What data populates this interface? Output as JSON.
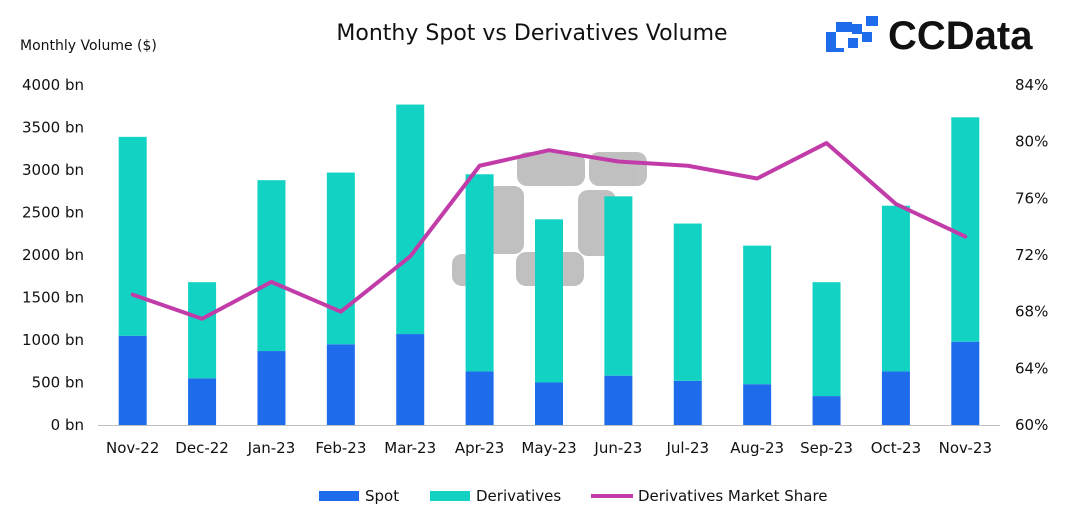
{
  "chart_data": {
    "type": "bar",
    "stacked": true,
    "title": "Monthy Spot vs Derivatives Volume",
    "ylabel": "Monthly Volume ($)",
    "brand": "CCData",
    "categories": [
      "Nov-22",
      "Dec-22",
      "Jan-23",
      "Feb-23",
      "Mar-23",
      "Apr-23",
      "May-23",
      "Jun-23",
      "Jul-23",
      "Aug-23",
      "Sep-23",
      "Oct-23",
      "Nov-23"
    ],
    "series": [
      {
        "name": "Spot",
        "kind": "bar",
        "axis": "left",
        "color": "#1e6beb",
        "values": [
          1050,
          550,
          870,
          950,
          1070,
          630,
          500,
          580,
          520,
          480,
          340,
          630,
          980
        ]
      },
      {
        "name": "Derivatives",
        "kind": "bar",
        "axis": "left",
        "color": "#12d3c3",
        "values": [
          2340,
          1130,
          2010,
          2020,
          2700,
          2320,
          1920,
          2110,
          1850,
          1630,
          1340,
          1950,
          2640
        ]
      },
      {
        "name": "Derivatives Market Share",
        "kind": "line",
        "axis": "right",
        "color": "#c13ca8",
        "values": [
          69.2,
          67.5,
          70.1,
          68.0,
          71.9,
          78.3,
          79.4,
          78.6,
          78.3,
          77.4,
          79.9,
          75.6,
          73.3
        ]
      }
    ],
    "ylim": [
      0,
      4000
    ],
    "yticks": [
      "0 bn",
      "500 bn",
      "1000 bn",
      "1500 bn",
      "2000 bn",
      "2500 bn",
      "3000 bn",
      "3500 bn",
      "4000 bn"
    ],
    "y2lim": [
      60,
      84
    ],
    "y2ticks": [
      "60%",
      "64%",
      "68%",
      "72%",
      "76%",
      "80%",
      "84%"
    ],
    "legend": [
      "Spot",
      "Derivatives",
      "Derivatives Market Share"
    ],
    "legend_position": "bottom",
    "grid": false
  }
}
